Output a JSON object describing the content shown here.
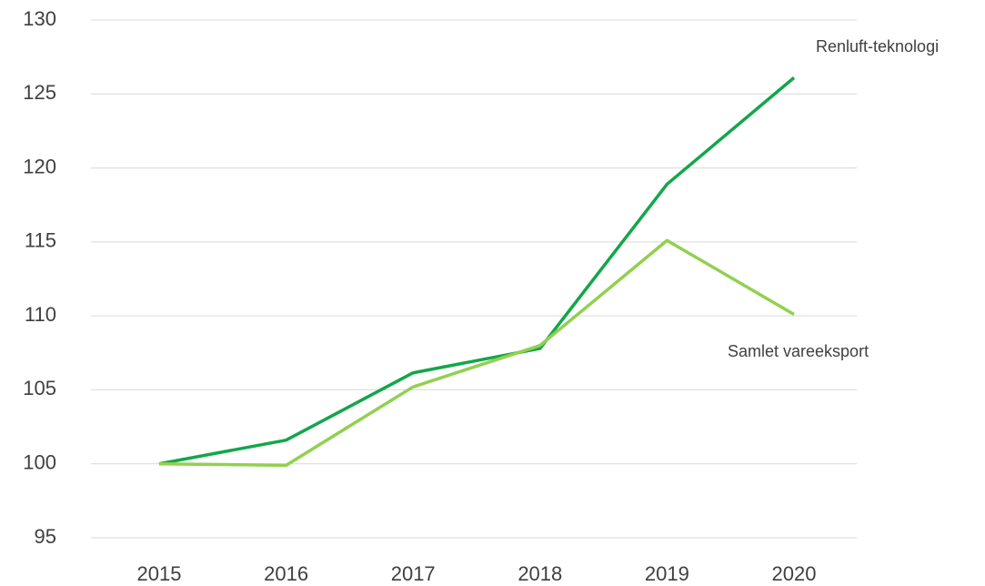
{
  "chart_data": {
    "type": "line",
    "x": [
      "2015",
      "2016",
      "2017",
      "2018",
      "2019",
      "2020"
    ],
    "series": [
      {
        "name": "Renluft-teknologi",
        "color": "#13a64b",
        "values": [
          100,
          101.6,
          106.15,
          107.8,
          118.9,
          126.1
        ]
      },
      {
        "name": "Samlet vareeksport",
        "color": "#92d050",
        "values": [
          100,
          99.9,
          105.2,
          108.0,
          115.1,
          110.1
        ]
      }
    ],
    "ylim": [
      95,
      130
    ],
    "yticks": [
      95,
      100,
      105,
      110,
      115,
      120,
      125,
      130
    ],
    "grid": true
  }
}
